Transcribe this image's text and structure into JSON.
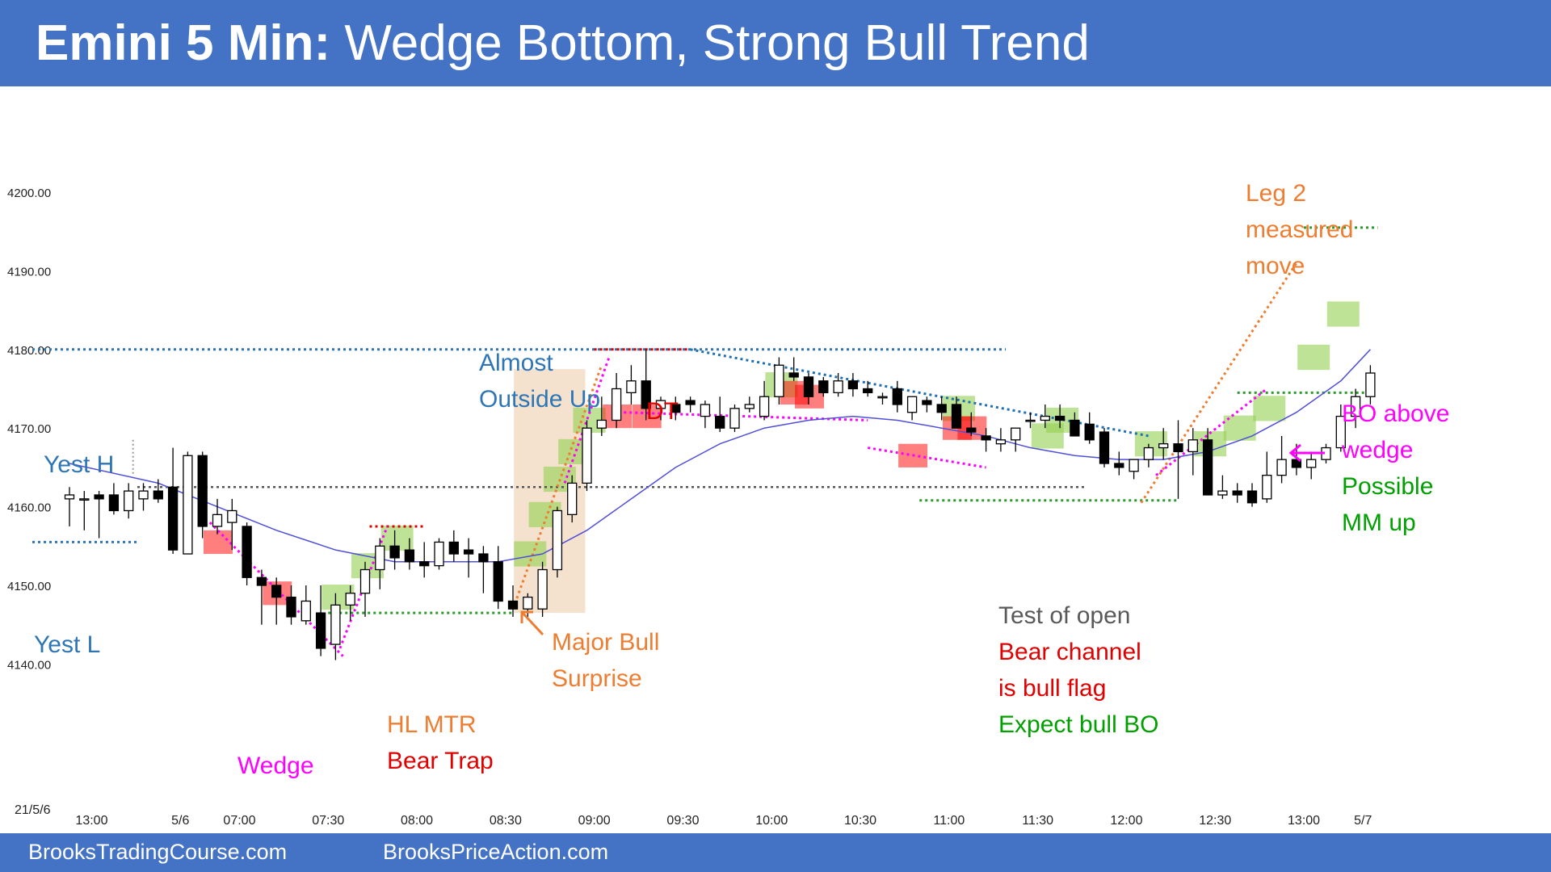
{
  "header": {
    "title_bold": "Emini 5 Min:",
    "title_rest": " Wedge Bottom, Strong Bull Trend"
  },
  "footer": {
    "link1": "BrooksTradingCourse.com",
    "link2": "BrooksPriceAction.com"
  },
  "colors": {
    "header_bg": "#4472c4",
    "bull_box": "#92d050",
    "bear_box": "#ff0000",
    "ema": "#4f4fd9",
    "yesterday_line": "#2e75b6",
    "magenta": "#ff00ff",
    "orange": "#ed7d31",
    "green_text": "#00a000",
    "red_text": "#e00000"
  },
  "chart_data": {
    "type": "candlestick",
    "date_label": "21/5/6",
    "ylim": [
      4133,
      4217
    ],
    "y_ticks": [
      "4200.00",
      "4190.00",
      "4180.00",
      "4170.00",
      "4160.00",
      "4150.00",
      "4140.00"
    ],
    "y_tick_values": [
      4200,
      4190,
      4180,
      4170,
      4160,
      4150,
      4140
    ],
    "x_ticks": [
      "13:00",
      "5/6",
      "07:00",
      "07:30",
      "08:00",
      "08:30",
      "09:00",
      "09:30",
      "10:00",
      "10:30",
      "11:00",
      "11:30",
      "12:00",
      "12:30",
      "13:00",
      "5/7"
    ],
    "x_tick_bars": [
      1.5,
      7.5,
      11.5,
      17.5,
      23.5,
      29.5,
      35.5,
      41.5,
      47.5,
      53.5,
      59.5,
      65.5,
      71.5,
      77.5,
      83.5,
      87.5
    ],
    "grid": false,
    "candles": [
      {
        "o": 4161,
        "h": 4162.5,
        "l": 4157.5,
        "c": 4161.5
      },
      {
        "o": 4161,
        "h": 4162,
        "l": 4157,
        "c": 4161
      },
      {
        "o": 4161.5,
        "h": 4162,
        "l": 4156,
        "c": 4161
      },
      {
        "o": 4161.5,
        "h": 4163,
        "l": 4159,
        "c": 4159.5
      },
      {
        "o": 4159.5,
        "h": 4163,
        "l": 4158.5,
        "c": 4162
      },
      {
        "o": 4161,
        "h": 4163,
        "l": 4159.5,
        "c": 4162
      },
      {
        "o": 4162,
        "h": 4163.5,
        "l": 4160.5,
        "c": 4161
      },
      {
        "o": 4162.5,
        "h": 4167.5,
        "l": 4154,
        "c": 4154.5
      },
      {
        "o": 4154,
        "h": 4167,
        "l": 4154,
        "c": 4166.5
      },
      {
        "o": 4166.5,
        "h": 4167,
        "l": 4156,
        "c": 4157.5
      },
      {
        "o": 4157.5,
        "h": 4161,
        "l": 4156.5,
        "c": 4159
      },
      {
        "o": 4158,
        "h": 4161,
        "l": 4154.5,
        "c": 4159.5
      },
      {
        "o": 4157.5,
        "h": 4158,
        "l": 4150,
        "c": 4151
      },
      {
        "o": 4151,
        "h": 4152,
        "l": 4145,
        "c": 4150
      },
      {
        "o": 4150,
        "h": 4151,
        "l": 4145,
        "c": 4148.5
      },
      {
        "o": 4148.5,
        "h": 4150,
        "l": 4145,
        "c": 4146
      },
      {
        "o": 4145.5,
        "h": 4150,
        "l": 4145,
        "c": 4148
      },
      {
        "o": 4146.5,
        "h": 4150,
        "l": 4141,
        "c": 4142
      },
      {
        "o": 4142.5,
        "h": 4149,
        "l": 4140.5,
        "c": 4147.5
      },
      {
        "o": 4147.5,
        "h": 4150,
        "l": 4145.5,
        "c": 4149
      },
      {
        "o": 4149,
        "h": 4153,
        "l": 4146,
        "c": 4152
      },
      {
        "o": 4152,
        "h": 4156,
        "l": 4149.5,
        "c": 4155
      },
      {
        "o": 4155,
        "h": 4157,
        "l": 4152,
        "c": 4153.5
      },
      {
        "o": 4154.5,
        "h": 4156,
        "l": 4152,
        "c": 4153
      },
      {
        "o": 4153,
        "h": 4155.5,
        "l": 4151,
        "c": 4152.5
      },
      {
        "o": 4152.5,
        "h": 4156,
        "l": 4152,
        "c": 4155.5
      },
      {
        "o": 4155.5,
        "h": 4157,
        "l": 4153,
        "c": 4154
      },
      {
        "o": 4154.5,
        "h": 4156,
        "l": 4151,
        "c": 4154
      },
      {
        "o": 4154,
        "h": 4155,
        "l": 4149,
        "c": 4153
      },
      {
        "o": 4153,
        "h": 4155,
        "l": 4147,
        "c": 4148
      },
      {
        "o": 4148,
        "h": 4150,
        "l": 4146,
        "c": 4147
      },
      {
        "o": 4147,
        "h": 4149,
        "l": 4146,
        "c": 4148.5
      },
      {
        "o": 4147,
        "h": 4153,
        "l": 4146,
        "c": 4152
      },
      {
        "o": 4152,
        "h": 4160,
        "l": 4151,
        "c": 4159.5
      },
      {
        "o": 4159,
        "h": 4164,
        "l": 4158,
        "c": 4163
      },
      {
        "o": 4163,
        "h": 4171,
        "l": 4162,
        "c": 4170
      },
      {
        "o": 4170,
        "h": 4174,
        "l": 4169,
        "c": 4171
      },
      {
        "o": 4171,
        "h": 4177,
        "l": 4170,
        "c": 4175
      },
      {
        "o": 4174.5,
        "h": 4178,
        "l": 4173,
        "c": 4176
      },
      {
        "o": 4176,
        "h": 4180,
        "l": 4171,
        "c": 4172.5
      },
      {
        "o": 4172.5,
        "h": 4174,
        "l": 4171,
        "c": 4173.5
      },
      {
        "o": 4173,
        "h": 4174,
        "l": 4171,
        "c": 4172
      },
      {
        "o": 4173.5,
        "h": 4174,
        "l": 4172,
        "c": 4173
      },
      {
        "o": 4171.5,
        "h": 4173.5,
        "l": 4170,
        "c": 4173
      },
      {
        "o": 4171.5,
        "h": 4174,
        "l": 4169.5,
        "c": 4170
      },
      {
        "o": 4170,
        "h": 4173,
        "l": 4169.5,
        "c": 4172.5
      },
      {
        "o": 4172.5,
        "h": 4174,
        "l": 4172,
        "c": 4173
      },
      {
        "o": 4171.5,
        "h": 4176,
        "l": 4171,
        "c": 4174
      },
      {
        "o": 4174,
        "h": 4179,
        "l": 4173,
        "c": 4178
      },
      {
        "o": 4177,
        "h": 4179,
        "l": 4176,
        "c": 4176.5
      },
      {
        "o": 4176.5,
        "h": 4177,
        "l": 4173,
        "c": 4174
      },
      {
        "o": 4176,
        "h": 4176.5,
        "l": 4174,
        "c": 4174.5
      },
      {
        "o": 4174.5,
        "h": 4177,
        "l": 4174,
        "c": 4176
      },
      {
        "o": 4176,
        "h": 4177,
        "l": 4174,
        "c": 4175
      },
      {
        "o": 4175,
        "h": 4176,
        "l": 4174,
        "c": 4174.5
      },
      {
        "o": 4174,
        "h": 4174.5,
        "l": 4173,
        "c": 4174
      },
      {
        "o": 4175,
        "h": 4176,
        "l": 4172,
        "c": 4173
      },
      {
        "o": 4172,
        "h": 4174,
        "l": 4171,
        "c": 4174
      },
      {
        "o": 4173.5,
        "h": 4174,
        "l": 4172,
        "c": 4173
      },
      {
        "o": 4173,
        "h": 4174,
        "l": 4171,
        "c": 4172
      },
      {
        "o": 4173,
        "h": 4174,
        "l": 4170,
        "c": 4170
      },
      {
        "o": 4170,
        "h": 4172,
        "l": 4169,
        "c": 4169.5
      },
      {
        "o": 4169,
        "h": 4170,
        "l": 4167,
        "c": 4168.5
      },
      {
        "o": 4168,
        "h": 4170,
        "l": 4167,
        "c": 4168.5
      },
      {
        "o": 4168.5,
        "h": 4170,
        "l": 4167,
        "c": 4170
      },
      {
        "o": 4171,
        "h": 4172,
        "l": 4170,
        "c": 4171
      },
      {
        "o": 4171,
        "h": 4173,
        "l": 4170,
        "c": 4171.5
      },
      {
        "o": 4171.5,
        "h": 4173,
        "l": 4170,
        "c": 4171
      },
      {
        "o": 4171,
        "h": 4172,
        "l": 4169,
        "c": 4169
      },
      {
        "o": 4170.5,
        "h": 4172,
        "l": 4168,
        "c": 4168.5
      },
      {
        "o": 4169.5,
        "h": 4170,
        "l": 4165,
        "c": 4165.5
      },
      {
        "o": 4165.5,
        "h": 4167,
        "l": 4164,
        "c": 4165
      },
      {
        "o": 4164.5,
        "h": 4166,
        "l": 4163.5,
        "c": 4166
      },
      {
        "o": 4166,
        "h": 4168,
        "l": 4165,
        "c": 4167.5
      },
      {
        "o": 4167.5,
        "h": 4170,
        "l": 4166,
        "c": 4168
      },
      {
        "o": 4168,
        "h": 4171,
        "l": 4161,
        "c": 4167
      },
      {
        "o": 4167,
        "h": 4170,
        "l": 4164,
        "c": 4168.5
      },
      {
        "o": 4168.5,
        "h": 4170,
        "l": 4162,
        "c": 4161.5
      },
      {
        "o": 4161.5,
        "h": 4164,
        "l": 4161,
        "c": 4162
      },
      {
        "o": 4162,
        "h": 4163,
        "l": 4160.5,
        "c": 4161.5
      },
      {
        "o": 4162,
        "h": 4163,
        "l": 4160,
        "c": 4160.5
      },
      {
        "o": 4161,
        "h": 4167,
        "l": 4160.5,
        "c": 4164
      },
      {
        "o": 4164,
        "h": 4169,
        "l": 4163,
        "c": 4166
      },
      {
        "o": 4166,
        "h": 4168,
        "l": 4164,
        "c": 4165
      },
      {
        "o": 4165,
        "h": 4167,
        "l": 4163.5,
        "c": 4166
      },
      {
        "o": 4166,
        "h": 4168,
        "l": 4165.5,
        "c": 4167.5
      },
      {
        "o": 4167.5,
        "h": 4173,
        "l": 4167,
        "c": 4171.5
      },
      {
        "o": 4171.5,
        "h": 4175,
        "l": 4170,
        "c": 4174
      },
      {
        "o": 4174,
        "h": 4178,
        "l": 4173,
        "c": 4177
      }
    ],
    "ema": [
      [
        0,
        4165.5
      ],
      [
        6,
        4163
      ],
      [
        10,
        4160
      ],
      [
        14,
        4157
      ],
      [
        18,
        4154.5
      ],
      [
        22,
        4153
      ],
      [
        26,
        4153
      ],
      [
        29,
        4153
      ],
      [
        32,
        4154
      ],
      [
        35,
        4157
      ],
      [
        38,
        4161
      ],
      [
        41,
        4165
      ],
      [
        44,
        4168
      ],
      [
        47,
        4170
      ],
      [
        50,
        4171
      ],
      [
        53,
        4171.5
      ],
      [
        56,
        4171
      ],
      [
        59,
        4170
      ],
      [
        62,
        4169
      ],
      [
        65,
        4167.5
      ],
      [
        68,
        4166.5
      ],
      [
        71,
        4166
      ],
      [
        74,
        4166
      ],
      [
        77,
        4167
      ],
      [
        80,
        4169
      ],
      [
        83,
        4172
      ],
      [
        86,
        4176
      ],
      [
        88,
        4180
      ]
    ],
    "annotations": [
      {
        "text": "Yest H",
        "color": "#2e75b6"
      },
      {
        "text": "Yest L",
        "color": "#2e75b6"
      },
      {
        "text": "Almost",
        "color": "#2e75b6"
      },
      {
        "text": "Outside Up",
        "color": "#2e75b6"
      },
      {
        "text": "DT",
        "color": "#e00000"
      },
      {
        "text": "Wedge",
        "color": "#ff00ff"
      },
      {
        "text": "HL MTR",
        "color": "#ed7d31"
      },
      {
        "text": "Bear Trap",
        "color": "#e00000"
      },
      {
        "text": "Major Bull",
        "color": "#ed7d31"
      },
      {
        "text": "Surprise",
        "color": "#ed7d31"
      },
      {
        "text": "Test of open",
        "color": "#595959"
      },
      {
        "text": "Bear channel",
        "color": "#e00000"
      },
      {
        "text": "is bull flag",
        "color": "#e00000"
      },
      {
        "text": "Expect bull BO",
        "color": "#00a000"
      },
      {
        "text": "Leg 2",
        "color": "#ed7d31"
      },
      {
        "text": "measured",
        "color": "#ed7d31"
      },
      {
        "text": "move",
        "color": "#ed7d31"
      },
      {
        "text": "BO above",
        "color": "#ff00ff"
      },
      {
        "text": "wedge",
        "color": "#ff00ff"
      },
      {
        "text": "Possible",
        "color": "#00a000"
      },
      {
        "text": "MM up",
        "color": "#00a000"
      }
    ]
  }
}
